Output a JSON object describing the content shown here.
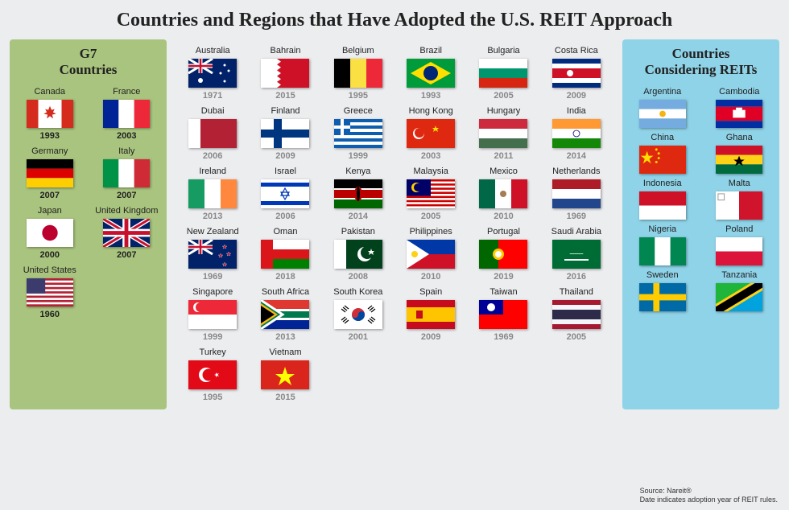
{
  "title": "Countries and Regions that Have Adopted the U.S. REIT Approach",
  "g7": {
    "title": "G7\nCountries",
    "items": [
      {
        "name": "Canada",
        "year": "1993",
        "flag": "canada"
      },
      {
        "name": "France",
        "year": "2003",
        "flag": "france"
      },
      {
        "name": "Germany",
        "year": "2007",
        "flag": "germany"
      },
      {
        "name": "Italy",
        "year": "2007",
        "flag": "italy"
      },
      {
        "name": "Japan",
        "year": "2000",
        "flag": "japan"
      },
      {
        "name": "United Kingdom",
        "year": "2007",
        "flag": "uk"
      },
      {
        "name": "United States",
        "year": "1960",
        "flag": "usa"
      }
    ]
  },
  "center": {
    "items": [
      {
        "name": "Australia",
        "year": "1971",
        "flag": "australia"
      },
      {
        "name": "Bahrain",
        "year": "2015",
        "flag": "bahrain"
      },
      {
        "name": "Belgium",
        "year": "1995",
        "flag": "belgium"
      },
      {
        "name": "Brazil",
        "year": "1993",
        "flag": "brazil"
      },
      {
        "name": "Bulgaria",
        "year": "2005",
        "flag": "bulgaria"
      },
      {
        "name": "Costa Rica",
        "year": "2009",
        "flag": "costarica"
      },
      {
        "name": "Dubai",
        "year": "2006",
        "flag": "dubai"
      },
      {
        "name": "Finland",
        "year": "2009",
        "flag": "finland"
      },
      {
        "name": "Greece",
        "year": "1999",
        "flag": "greece"
      },
      {
        "name": "Hong Kong",
        "year": "2003",
        "flag": "hongkong"
      },
      {
        "name": "Hungary",
        "year": "2011",
        "flag": "hungary"
      },
      {
        "name": "India",
        "year": "2014",
        "flag": "india"
      },
      {
        "name": "Ireland",
        "year": "2013",
        "flag": "ireland"
      },
      {
        "name": "Israel",
        "year": "2006",
        "flag": "israel"
      },
      {
        "name": "Kenya",
        "year": "2014",
        "flag": "kenya"
      },
      {
        "name": "Malaysia",
        "year": "2005",
        "flag": "malaysia"
      },
      {
        "name": "Mexico",
        "year": "2010",
        "flag": "mexico"
      },
      {
        "name": "Netherlands",
        "year": "1969",
        "flag": "netherlands"
      },
      {
        "name": "New Zealand",
        "year": "1969",
        "flag": "newzealand"
      },
      {
        "name": "Oman",
        "year": "2018",
        "flag": "oman"
      },
      {
        "name": "Pakistan",
        "year": "2008",
        "flag": "pakistan"
      },
      {
        "name": "Philippines",
        "year": "2010",
        "flag": "philippines"
      },
      {
        "name": "Portugal",
        "year": "2019",
        "flag": "portugal"
      },
      {
        "name": "Saudi Arabia",
        "year": "2016",
        "flag": "saudiarabia"
      },
      {
        "name": "Singapore",
        "year": "1999",
        "flag": "singapore"
      },
      {
        "name": "South Africa",
        "year": "2013",
        "flag": "southafrica"
      },
      {
        "name": "South Korea",
        "year": "2001",
        "flag": "southkorea"
      },
      {
        "name": "Spain",
        "year": "2009",
        "flag": "spain"
      },
      {
        "name": "Taiwan",
        "year": "1969",
        "flag": "taiwan"
      },
      {
        "name": "Thailand",
        "year": "2005",
        "flag": "thailand"
      },
      {
        "name": "Turkey",
        "year": "1995",
        "flag": "turkey"
      },
      {
        "name": "Vietnam",
        "year": "2015",
        "flag": "vietnam"
      }
    ]
  },
  "considering": {
    "title": "Countries\nConsidering REITs",
    "items": [
      {
        "name": "Argentina",
        "flag": "argentina"
      },
      {
        "name": "Cambodia",
        "flag": "cambodia"
      },
      {
        "name": "China",
        "flag": "china"
      },
      {
        "name": "Ghana",
        "flag": "ghana"
      },
      {
        "name": "Indonesia",
        "flag": "indonesia"
      },
      {
        "name": "Malta",
        "flag": "malta"
      },
      {
        "name": "Nigeria",
        "flag": "nigeria"
      },
      {
        "name": "Poland",
        "flag": "poland"
      },
      {
        "name": "Sweden",
        "flag": "sweden"
      },
      {
        "name": "Tanzania",
        "flag": "tanzania"
      }
    ]
  },
  "footer": {
    "source": "Source: Nareit®",
    "note": "Date indicates adoption year of REIT rules."
  },
  "flags_svg": {
    "canada": "<rect width='60' height='36' fill='#fff'/><rect width='15' height='36' fill='#d52b1e'/><rect x='45' width='15' height='36' fill='#d52b1e'/><path d='M30 8l2 5 4-1-2 4 4 2-5 1 1 5-4-3-4 3 1-5-5-1 4-2-2-4 4 1z' fill='#d52b1e'/>",
    "france": "<rect width='20' height='36' fill='#002395'/><rect x='20' width='20' height='36' fill='#fff'/><rect x='40' width='20' height='36' fill='#ed2939'/>",
    "germany": "<rect width='60' height='12' fill='#000'/><rect y='12' width='60' height='12' fill='#dd0000'/><rect y='24' width='60' height='12' fill='#ffce00'/>",
    "italy": "<rect width='20' height='36' fill='#009246'/><rect x='20' width='20' height='36' fill='#fff'/><rect x='40' width='20' height='36' fill='#ce2b37'/>",
    "japan": "<rect width='60' height='36' fill='#fff'/><circle cx='30' cy='18' r='10' fill='#bc002d'/>",
    "uk": "<rect width='60' height='36' fill='#012169'/><path d='M0 0l60 36M60 0L0 36' stroke='#fff' stroke-width='6'/><path d='M0 0l60 36M60 0L0 36' stroke='#c8102e' stroke-width='3'/><path d='M30 0v36M0 18h60' stroke='#fff' stroke-width='10'/><path d='M30 0v36M0 18h60' stroke='#c8102e' stroke-width='5'/>",
    "usa": "<rect width='60' height='36' fill='#b22234'/><rect y='2.77' width='60' height='2.77' fill='#fff'/><rect y='8.31' width='60' height='2.77' fill='#fff'/><rect y='13.85' width='60' height='2.77' fill='#fff'/><rect y='19.38' width='60' height='2.77' fill='#fff'/><rect y='24.92' width='60' height='2.77' fill='#fff'/><rect y='30.46' width='60' height='2.77' fill='#fff'/><rect width='24' height='19.38' fill='#3c3b6e'/>",
    "australia": "<rect width='60' height='36' fill='#012169'/><rect width='30' height='18' fill='#012169'/><path d='M0 0l30 18M30 0L0 18' stroke='#fff' stroke-width='3'/><path d='M15 0v18M0 9h30' stroke='#fff' stroke-width='5'/><path d='M15 0v18M0 9h30' stroke='#c8102e' stroke-width='2.5'/><circle cx='15' cy='27' r='3' fill='#fff'/><circle cx='45' cy='8' r='1.5' fill='#fff'/><circle cx='50' cy='15' r='1.5' fill='#fff'/><circle cx='45' cy='28' r='1.5' fill='#fff'/><circle cx='40' cy='18' r='1.5' fill='#fff'/>",
    "bahrain": "<rect width='60' height='36' fill='#ce1126'/><path d='M0 0h20l5 3.6-5 3.6 5 3.6-5 3.6 5 3.6-5 3.6 5 3.6-5 3.6 5 3.6-5 3.6H0z' fill='#fff'/>",
    "belgium": "<rect width='20' height='36' fill='#000'/><rect x='20' width='20' height='36' fill='#fae042'/><rect x='40' width='20' height='36' fill='#ed2939'/>",
    "brazil": "<rect width='60' height='36' fill='#009b3a'/><path d='M30 4l25 14-25 14-25-14z' fill='#fedf00'/><circle cx='30' cy='18' r='9' fill='#002776'/>",
    "bulgaria": "<rect width='60' height='12' fill='#fff'/><rect y='12' width='60' height='12' fill='#00966e'/><rect y='24' width='60' height='12' fill='#d62612'/>",
    "costarica": "<rect width='60' height='36' fill='#002b7f'/><rect y='6' width='60' height='24' fill='#fff'/><rect y='12' width='60' height='12' fill='#ce1126'/><circle cx='22' cy='18' r='4' fill='#fff'/>",
    "dubai": "<rect width='60' height='36' fill='#fff'/><rect x='15' width='45' height='36' fill='#b22234'/>",
    "finland": "<rect width='60' height='36' fill='#fff'/><rect y='13' width='60' height='10' fill='#003580'/><rect x='16' width='10' height='36' fill='#003580'/>",
    "greece": "<rect width='60' height='36' fill='#0d5eaf'/><rect y='4' width='60' height='4' fill='#fff'/><rect y='12' width='60' height='4' fill='#fff'/><rect y='20' width='60' height='4' fill='#fff'/><rect y='28' width='60' height='4' fill='#fff'/><rect width='20' height='20' fill='#0d5eaf'/><rect y='8' width='20' height='4' fill='#fff'/><rect x='8' width='4' height='20' fill='#fff'/>",
    "hongkong": "<rect width='30' height='36' fill='#de2910'/><circle cx='15' cy='18' r='7' fill='#fff'/><circle cx='16' cy='17' r='6' fill='#de2910'/><rect x='30' width='30' height='36' fill='#de2910'/><path d='M36 8l1 3 3 0-2 2 1 3-3-2-3 2 1-3-2-2 3 0z' fill='#ffde00'/>",
    "hungary": "<rect width='60' height='12' fill='#cd2a3e'/><rect y='12' width='60' height='12' fill='#fff'/><rect y='24' width='60' height='12' fill='#436f4d'/>",
    "india": "<rect width='60' height='12' fill='#ff9933'/><rect y='12' width='60' height='12' fill='#fff'/><rect y='24' width='60' height='12' fill='#138808'/><circle cx='30' cy='18' r='4' fill='none' stroke='#000080' stroke-width='0.8'/>",
    "ireland": "<rect width='20' height='36' fill='#169b62'/><rect x='20' width='20' height='36' fill='#fff'/><rect x='40' width='20' height='36' fill='#ff883e'/>",
    "israel": "<rect width='60' height='36' fill='#fff'/><rect y='4' width='60' height='5' fill='#0038b8'/><rect y='27' width='60' height='5' fill='#0038b8'/><path d='M30 11l5 9h-10z M30 25l-5-9h10z' fill='none' stroke='#0038b8' stroke-width='1.2'/>",
    "kenya": "<rect width='60' height='36' fill='#006600'/><rect width='60' height='11' fill='#000'/><rect y='11' width='60' height='2' fill='#fff'/><rect y='13' width='60' height='10' fill='#bb0000'/><rect y='23' width='60' height='2' fill='#fff'/><ellipse cx='30' cy='18' rx='5' ry='9' fill='#bb0000'/><ellipse cx='30' cy='18' rx='2' ry='9' fill='#000'/>",
    "malaysia": "<rect width='60' height='36' fill='#cc0001'/><rect y='2.57' width='60' height='2.57' fill='#fff'/><rect y='7.71' width='60' height='2.57' fill='#fff'/><rect y='12.86' width='60' height='2.57' fill='#fff'/><rect y='18' width='60' height='2.57' fill='#fff'/><rect y='23.14' width='60' height='2.57' fill='#fff'/><rect y='28.29' width='60' height='2.57' fill='#fff'/><rect y='33.43' width='60' height='2.57' fill='#fff'/><rect width='30' height='20.57' fill='#010066'/><circle cx='12' cy='10' r='6' fill='#ffcc00'/><circle cx='14' cy='10' r='5' fill='#010066'/>",
    "mexico": "<rect width='20' height='36' fill='#006847'/><rect x='20' width='20' height='36' fill='#fff'/><rect x='40' width='20' height='36' fill='#ce1126'/><circle cx='30' cy='18' r='4' fill='#a67c52'/>",
    "netherlands": "<rect width='60' height='12' fill='#ae1c28'/><rect y='12' width='60' height='12' fill='#fff'/><rect y='24' width='60' height='12' fill='#21468b'/>",
    "newzealand": "<rect width='60' height='36' fill='#012169'/><path d='M0 0l30 18M30 0L0 18' stroke='#fff' stroke-width='3'/><path d='M15 0v18M0 9h30' stroke='#fff' stroke-width='5'/><path d='M15 0v18M0 9h30' stroke='#c8102e' stroke-width='2.5'/><path d='M45 6l1 2 2 0-2 1 1 2-2-1-2 1 1-2-2-1 2 0z' fill='#c8102e' stroke='#fff' stroke-width='0.3'/><path d='M50 15l1 2 2 0-2 1 1 2-2-1-2 1 1-2-2-1 2 0z' fill='#c8102e' stroke='#fff' stroke-width='0.3'/><path d='M45 28l1 2 2 0-2 1 1 2-2-1-2 1 1-2-2-1 2 0z' fill='#c8102e' stroke='#fff' stroke-width='0.3'/><path d='M40 17l1 2 2 0-2 1 1 2-2-1-2 1 1-2-2-1 2 0z' fill='#c8102e' stroke='#fff' stroke-width='0.3'/>",
    "oman": "<rect width='60' height='36' fill='#fff'/><rect y='12' width='60' height='12' fill='#db161b'/><rect y='24' width='60' height='12' fill='#008000'/><rect width='15' height='36' fill='#db161b'/>",
    "pakistan": "<rect width='60' height='36' fill='#01411c'/><rect width='15' height='36' fill='#fff'/><circle cx='38' cy='18' r='9' fill='#fff'/><circle cx='41' cy='16' r='8' fill='#01411c'/><path d='M46 11l1 3 3 0-2 2 1 3-3-2-3 2 1-3-2-2 3 0z' fill='#fff'/>",
    "philippines": "<rect width='60' height='18' fill='#0038a8'/><rect y='18' width='60' height='18' fill='#ce1126'/><path d='M0 0l28 18L0 36z' fill='#fff'/><circle cx='10' cy='18' r='4' fill='#fcd116'/>",
    "portugal": "<rect width='24' height='36' fill='#006600'/><rect x='24' width='36' height='36' fill='#ff0000'/><circle cx='24' cy='18' r='7' fill='#ffcc00'/><circle cx='24' cy='18' r='4' fill='#fff'/>",
    "saudiarabia": "<rect width='60' height='36' fill='#006c35'/><text x='30' y='18' font-size='8' fill='#fff' text-anchor='middle' font-family='Arial'>ـــــــ</text><rect x='15' y='24' width='30' height='2' fill='#fff'/>",
    "singapore": "<rect width='60' height='18' fill='#ed2939'/><rect y='18' width='60' height='18' fill='#fff'/><circle cx='12' cy='9' r='6' fill='#fff'/><circle cx='15' cy='9' r='6' fill='#ed2939'/>",
    "southafrica": "<rect width='60' height='36' fill='#002395'/><rect width='60' height='12' fill='#de3831'/><path d='M0 0l24 18L0 36z' fill='#000'/><path d='M0 0l24 18L0 36' fill='none' stroke='#ffb612' stroke-width='3'/><path d='M0 4l20 14L0 32V36h60v-10H26L0 4z M0 0h60v10H26L4 0z' fill='#007a4d'/><path d='M0 0h60v12H28L6 0z' fill='#de3831'/><path d='M0 36h60V24H28L6 36z' fill='#002395'/><path d='M0 6l18 12L0 30' fill='none' stroke='#fff' stroke-width='2'/><path d='M0 0l24 18L0 36V30l16-12L0 6z' fill='#ffb612'/><path d='M0 3l20 15L0 33V27l12-9L0 9z' fill='#000'/><path d='M22 18L2 3V0h4l20 15h34v6H26L6 36H2v-3z' fill='#007a4d'/><path d='M24 14h36v8H24L3 36H0v-2l22-16L0 2V0h3z' fill='none'/><rect width='60' height='12' fill='#de3831'/><rect y='24' width='60' height='12' fill='#002395'/><path d='M0 12h60v12H0z' fill='#fff'/><path d='M0 14h60v8H0z' fill='#007a4d'/><path d='M0 0l26 18L0 36z' fill='#fff'/><path d='M0 2l23 16L0 34z' fill='#ffb612'/><path d='M0 5l19 13L0 31z' fill='#000'/><path d='M0 12l9 6-9 6v-2l6-4-6-4z M26 14h34v8H26l-3 2 3-6z' fill='#007a4d'/><path d='M0 0l26 18h34v-4H28L4 0z M0 36l26-18h34v4H28L4 36z' fill='#007a4d'/><path d='M0 0h4l24 16h32v4H28L4 36H0v-4l22-14L0 4z' fill='#007a4d'/><rect width='60' height='11' fill='#de3831'/><rect y='25' width='60' height='11' fill='#002395'/><rect y='11' width='60' height='3' fill='#fff'/><rect y='22' width='60' height='3' fill='#fff'/><rect y='14' width='60' height='8' fill='#007a4d'/><path d='M0 0l27 18L0 36z' fill='#007a4d'/><path d='M0 0l27 18L0 36' stroke='#fff' stroke-width='3' fill='none'/><path d='M0 4l21 14L0 32z' fill='#ffb612'/><path d='M0 7l17 11L0 29z' fill='#000'/>",
    "southkorea": "<rect width='60' height='36' fill='#fff'/><circle cx='30' cy='18' r='8' fill='#cd2e3a'/><path d='M22 18a8 8 0 0016 0 4 4 0 00-8 0 4 4 0 01-8 0z' fill='#0047a0'/><g stroke='#000' stroke-width='1.2'><line x1='13' y1='7' x2='18' y2='11'/><line x1='11' y1='9' x2='16' y2='13'/><line x1='9' y1='11' x2='14' y2='15'/><line x1='42' y1='11' x2='47' y2='7'/><line x1='44' y1='13' x2='49' y2='9'/><line x1='46' y1='15' x2='51' y2='11'/><line x1='13' y1='29' x2='18' y2='25'/><line x1='11' y1='27' x2='16' y2='23'/><line x1='9' y1='25' x2='14' y2='21'/><line x1='42' y1='25' x2='47' y2='29'/><line x1='44' y1='23' x2='49' y2='27'/><line x1='46' y1='21' x2='51' y2='25'/></g>",
    "spain": "<rect width='60' height='36' fill='#c60b1e'/><rect y='9' width='60' height='18' fill='#ffc400'/><rect x='12' y='13' width='8' height='10' fill='#c60b1e'/>",
    "taiwan": "<rect width='60' height='36' fill='#fe0000'/><rect width='30' height='18' fill='#000095'/><circle cx='15' cy='9' r='5' fill='#fff'/>",
    "thailand": "<rect width='60' height='36' fill='#a51931'/><rect y='6' width='60' height='24' fill='#f4f5f8'/><rect y='12' width='60' height='12' fill='#2d2a4a'/>",
    "turkey": "<rect width='60' height='36' fill='#e30a17'/><circle cx='22' cy='18' r='9' fill='#fff'/><circle cx='25' cy='18' r='7.5' fill='#e30a17'/><path d='M32 18l6-2-4 5 0-6 4 5z' fill='#fff'/>",
    "vietnam": "<rect width='60' height='36' fill='#da251d'/><path d='M30 8l3 9h9l-7 5 3 9-8-6-8 6 3-9-7-5h9z' fill='#ffff00'/>",
    "argentina": "<rect width='60' height='12' fill='#74acdf'/><rect y='12' width='60' height='12' fill='#fff'/><rect y='24' width='60' height='12' fill='#74acdf'/><circle cx='30' cy='18' r='4' fill='#f6b40e'/>",
    "cambodia": "<rect width='60' height='9' fill='#032ea1'/><rect y='9' width='60' height='18' fill='#e00025'/><rect y='27' width='60' height='9' fill='#032ea1'/><rect x='22' y='13' width='16' height='10' fill='#fff'/><rect x='26' y='10' width='8' height='6' fill='#fff'/>",
    "china": "<rect width='60' height='36' fill='#de2910'/><path d='M10 7l2 6 6 0-5 4 2 6-5-4-5 4 2-6-5-4 6 0z' fill='#ffde00'/><circle cx='22' cy='5' r='1.5' fill='#ffde00'/><circle cx='25' cy='10' r='1.5' fill='#ffde00'/><circle cx='25' cy='16' r='1.5' fill='#ffde00'/><circle cx='22' cy='21' r='1.5' fill='#ffde00'/>",
    "ghana": "<rect width='60' height='12' fill='#ce1126'/><rect y='12' width='60' height='12' fill='#fcd116'/><rect y='24' width='60' height='12' fill='#006b3f'/><path d='M30 13l2 5 5 0-4 3 2 5-5-3-5 3 2-5-4-3 5 0z' fill='#000'/>",
    "indonesia": "<rect width='60' height='18' fill='#ce1126'/><rect y='18' width='60' height='18' fill='#fff'/>",
    "malta": "<rect width='30' height='36' fill='#fff'/><rect x='30' width='30' height='36' fill='#cf142b'/><rect x='3' y='3' width='8' height='8' fill='none' stroke='#999' stroke-width='1'/>",
    "nigeria": "<rect width='20' height='36' fill='#008751'/><rect x='20' width='20' height='36' fill='#fff'/><rect x='40' width='20' height='36' fill='#008751'/>",
    "poland": "<rect width='60' height='18' fill='#fff'/><rect y='18' width='60' height='18' fill='#dc143c'/>",
    "sweden": "<rect width='60' height='36' fill='#006aa7'/><rect y='14' width='60' height='8' fill='#fecc00'/><rect x='18' width='8' height='36' fill='#fecc00'/>",
    "tanzania": "<rect width='60' height='36' fill='#1eb53a'/><path d='M0 36L60 0v36z' fill='#00a3dd'/><path d='M0 36L60 0' stroke='#000' stroke-width='12'/><path d='M0 36L60 0' stroke='#fcd116' stroke-width='16'/><path d='M0 36L60 0' stroke='#000' stroke-width='10'/>"
  }
}
